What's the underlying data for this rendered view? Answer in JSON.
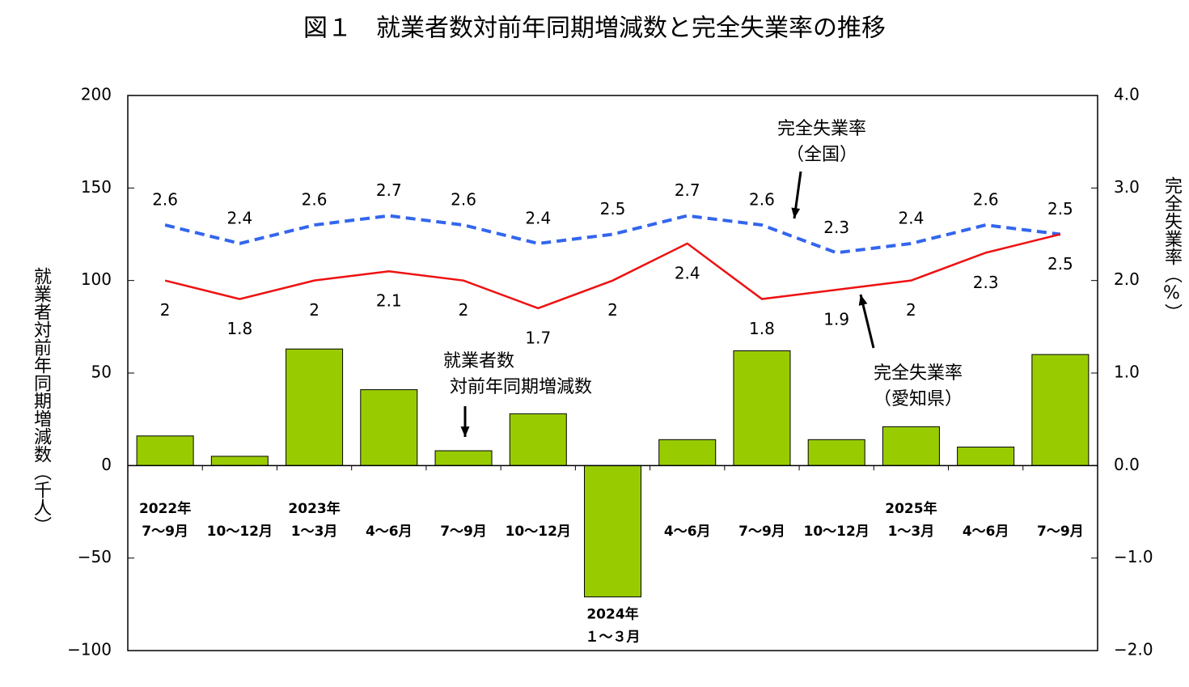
{
  "chart_data": {
    "type": "bar-line",
    "title": "図１　就業者数対前年同期増減数と完全失業率の推移",
    "y_label": "就業者対前年同期増減数（千人）",
    "y2_label": "完全失業率（%）",
    "categories": [
      [
        "2022年",
        "7～9月"
      ],
      [
        "10～12月"
      ],
      [
        "2023年",
        "1～3月"
      ],
      [
        "4～6月"
      ],
      [
        "7～9月"
      ],
      [
        "10～12月"
      ],
      [
        "2024年",
        "１～３月"
      ],
      [
        "4～6月"
      ],
      [
        "7～9月"
      ],
      [
        "10～12月"
      ],
      [
        "2025年",
        "1～3月"
      ],
      [
        "4～6月"
      ],
      [
        "7～9月"
      ]
    ],
    "series": [
      {
        "name": "就業者数対前年同期増減数",
        "type": "bar",
        "color": "#99cc00",
        "values": [
          16,
          5,
          63,
          41,
          8,
          28,
          -71,
          14,
          62,
          14,
          21,
          10,
          60
        ]
      },
      {
        "name": "完全失業率（全国）",
        "type": "line",
        "axis": "y2",
        "color": "#3366ee",
        "dashed": true,
        "values": [
          2.6,
          2.4,
          2.6,
          2.7,
          2.6,
          2.4,
          2.5,
          2.7,
          2.6,
          2.3,
          2.4,
          2.6,
          2.5
        ]
      },
      {
        "name": "完全失業率（愛知県）",
        "type": "line",
        "axis": "y2",
        "color": "#ee1111",
        "dashed": false,
        "values": [
          2.0,
          1.8,
          2.0,
          2.1,
          2.0,
          1.7,
          2.0,
          2.4,
          1.8,
          1.9,
          2.0,
          2.3,
          2.5
        ]
      }
    ],
    "annotations": [
      [
        "完全失業率",
        "（全国）"
      ],
      [
        "完全失業率",
        "（愛知県）"
      ],
      [
        "就業者数",
        "対前年同期増減数"
      ]
    ],
    "ylim": [
      -100,
      200
    ],
    "yticks": [
      {
        "value": -100,
        "label": "−100"
      },
      {
        "value": -50,
        "label": "−50"
      },
      0,
      50,
      100,
      150,
      200
    ],
    "y2lim": [
      -2,
      4
    ],
    "y2ticks": [
      {
        "value": -2,
        "label": "−2.0"
      },
      {
        "value": -1,
        "label": "−1.0"
      },
      {
        "value": 0,
        "label": "0.0"
      },
      {
        "value": 1,
        "label": "1.0"
      },
      {
        "value": 2,
        "label": "2.0"
      },
      {
        "value": 3,
        "label": "3.0"
      },
      {
        "value": 4,
        "label": "4.0"
      }
    ]
  }
}
